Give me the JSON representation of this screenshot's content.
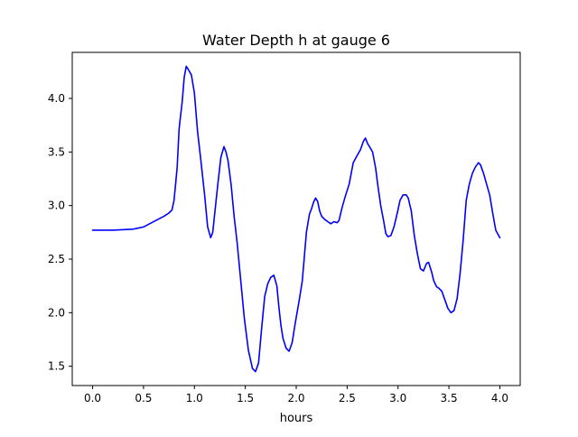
{
  "chart_data": {
    "type": "line",
    "title": "Water Depth h at gauge 6",
    "xlabel": "hours",
    "ylabel": "",
    "xlim": [
      -0.2,
      4.2
    ],
    "ylim": [
      1.32,
      4.43
    ],
    "xticks": [
      0.0,
      0.5,
      1.0,
      1.5,
      2.0,
      2.5,
      3.0,
      3.5,
      4.0
    ],
    "xtick_labels": [
      "0.0",
      "0.5",
      "1.0",
      "1.5",
      "2.0",
      "2.5",
      "3.0",
      "3.5",
      "4.0"
    ],
    "yticks": [
      1.5,
      2.0,
      2.5,
      3.0,
      3.5,
      4.0
    ],
    "ytick_labels": [
      "1.5",
      "2.0",
      "2.5",
      "3.0",
      "3.5",
      "4.0"
    ],
    "grid": false,
    "series": [
      {
        "color": "#0000ff",
        "x": [
          0.0,
          0.2,
          0.4,
          0.45,
          0.5,
          0.6,
          0.7,
          0.75,
          0.78,
          0.8,
          0.83,
          0.85,
          0.88,
          0.9,
          0.92,
          0.94,
          0.97,
          1.0,
          1.03,
          1.06,
          1.1,
          1.13,
          1.16,
          1.18,
          1.2,
          1.23,
          1.26,
          1.29,
          1.31,
          1.33,
          1.36,
          1.39,
          1.42,
          1.45,
          1.49,
          1.53,
          1.57,
          1.6,
          1.63,
          1.66,
          1.69,
          1.72,
          1.75,
          1.78,
          1.81,
          1.83,
          1.85,
          1.87,
          1.9,
          1.93,
          1.96,
          1.99,
          2.03,
          2.06,
          2.1,
          2.13,
          2.15,
          2.17,
          2.19,
          2.21,
          2.23,
          2.25,
          2.28,
          2.31,
          2.34,
          2.37,
          2.4,
          2.42,
          2.45,
          2.48,
          2.52,
          2.56,
          2.6,
          2.63,
          2.66,
          2.68,
          2.7,
          2.72,
          2.75,
          2.78,
          2.8,
          2.83,
          2.86,
          2.88,
          2.9,
          2.93,
          2.96,
          2.99,
          3.02,
          3.05,
          3.08,
          3.1,
          3.13,
          3.16,
          3.19,
          3.22,
          3.25,
          3.28,
          3.3,
          3.33,
          3.35,
          3.38,
          3.4,
          3.43,
          3.46,
          3.49,
          3.52,
          3.55,
          3.58,
          3.61,
          3.64,
          3.67,
          3.7,
          3.73,
          3.76,
          3.79,
          3.81,
          3.84,
          3.87,
          3.9,
          3.93,
          3.96,
          4.0
        ],
        "y": [
          2.77,
          2.77,
          2.78,
          2.79,
          2.8,
          2.85,
          2.9,
          2.93,
          2.96,
          3.05,
          3.35,
          3.72,
          3.97,
          4.2,
          4.3,
          4.27,
          4.22,
          4.05,
          3.7,
          3.45,
          3.1,
          2.8,
          2.7,
          2.75,
          2.93,
          3.2,
          3.45,
          3.55,
          3.5,
          3.42,
          3.2,
          2.9,
          2.65,
          2.35,
          1.95,
          1.65,
          1.48,
          1.45,
          1.53,
          1.85,
          2.15,
          2.27,
          2.33,
          2.35,
          2.25,
          2.05,
          1.88,
          1.76,
          1.67,
          1.64,
          1.72,
          1.9,
          2.12,
          2.3,
          2.75,
          2.92,
          2.97,
          3.03,
          3.07,
          3.04,
          2.95,
          2.9,
          2.87,
          2.85,
          2.83,
          2.85,
          2.84,
          2.86,
          2.98,
          3.08,
          3.2,
          3.4,
          3.47,
          3.52,
          3.6,
          3.63,
          3.58,
          3.55,
          3.5,
          3.35,
          3.2,
          3.0,
          2.85,
          2.74,
          2.71,
          2.72,
          2.8,
          2.92,
          3.05,
          3.1,
          3.1,
          3.07,
          2.95,
          2.72,
          2.55,
          2.41,
          2.39,
          2.46,
          2.47,
          2.38,
          2.3,
          2.24,
          2.23,
          2.2,
          2.12,
          2.04,
          2.0,
          2.02,
          2.13,
          2.37,
          2.68,
          3.05,
          3.2,
          3.3,
          3.36,
          3.4,
          3.38,
          3.3,
          3.2,
          3.1,
          2.93,
          2.77,
          2.7
        ]
      }
    ]
  }
}
